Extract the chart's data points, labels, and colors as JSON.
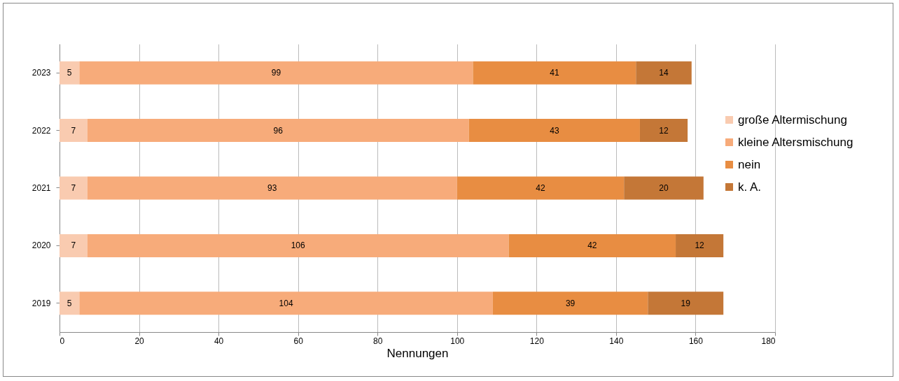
{
  "chart_data": {
    "type": "bar",
    "orientation": "horizontal",
    "stacked": true,
    "data_labels": true,
    "xlabel": "Nennungen",
    "categories": [
      "2023",
      "2022",
      "2021",
      "2020",
      "2019"
    ],
    "series": [
      {
        "name": "große Altermischung",
        "color": "#f9cbb0",
        "values": [
          5,
          7,
          7,
          7,
          5
        ]
      },
      {
        "name": "kleine Altersmischung",
        "color": "#f7ab7a",
        "values": [
          99,
          96,
          93,
          106,
          104
        ]
      },
      {
        "name": "nein",
        "color": "#e88d42",
        "values": [
          41,
          43,
          42,
          42,
          39
        ]
      },
      {
        "name": "k. A.",
        "color": "#c47737",
        "values": [
          14,
          12,
          20,
          12,
          19
        ]
      }
    ],
    "xlim": [
      0,
      180
    ],
    "xticks": [
      0,
      20,
      40,
      60,
      80,
      100,
      120,
      140,
      160,
      180
    ],
    "grid": "x",
    "legend": "right"
  }
}
